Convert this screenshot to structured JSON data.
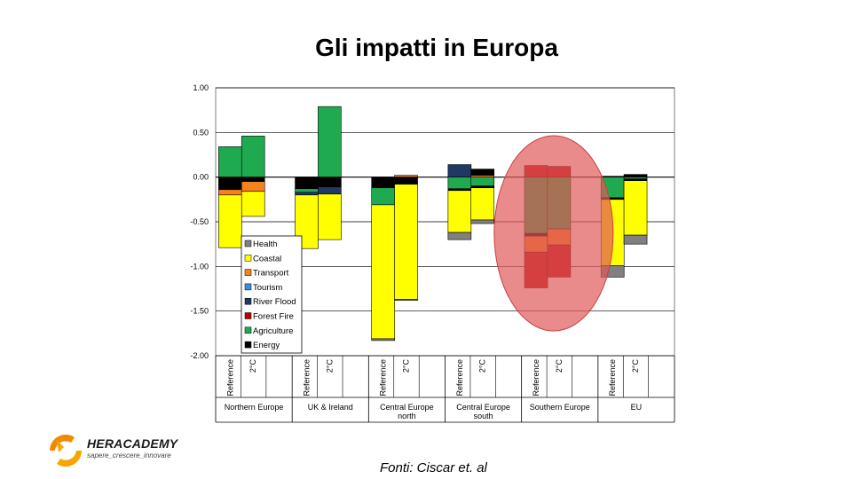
{
  "slide": {
    "title": "Gli impatti in Europa",
    "source": "Fonti: Ciscar et. al"
  },
  "logo": {
    "name": "HERACADEMY",
    "tagline": "sapere_crescere_innovare"
  },
  "colors": {
    "Health": "#808080",
    "Coastal": "#ffff00",
    "Transport": "#f58220",
    "Tourism": "#3b8fd8",
    "River Flood": "#1f3864",
    "Forest Fire": "#c00000",
    "Agriculture": "#1faa4f",
    "Energy": "#000000",
    "highlight": "#e05a5a"
  },
  "chart_data": {
    "type": "bar",
    "stacked": true,
    "ylim": [
      -2.0,
      1.0
    ],
    "yticks": [
      "1.00",
      "0.50",
      "0.00",
      "-0.50",
      "-1.00",
      "-1.50",
      "-2.00"
    ],
    "grid": true,
    "legend_position": "bottom-left",
    "legend": [
      "Health",
      "Coastal",
      "Transport",
      "Tourism",
      "River Flood",
      "Forest Fire",
      "Agriculture",
      "Energy"
    ],
    "groups": [
      {
        "label": "Northern Europe",
        "bars": [
          {
            "label": "Reference",
            "segments": [
              {
                "name": "Agriculture",
                "value": 0.34
              },
              {
                "name": "Energy",
                "value": -0.14
              },
              {
                "name": "Transport",
                "value": -0.06
              },
              {
                "name": "Coastal",
                "value": -0.59
              }
            ]
          },
          {
            "label": "2°C",
            "segments": [
              {
                "name": "Agriculture",
                "value": 0.46
              },
              {
                "name": "Energy",
                "value": -0.05
              },
              {
                "name": "Transport",
                "value": -0.11
              },
              {
                "name": "Coastal",
                "value": -0.28
              }
            ]
          }
        ]
      },
      {
        "label": "UK & Ireland",
        "bars": [
          {
            "label": "Reference",
            "segments": [
              {
                "name": "Energy",
                "value": -0.13
              },
              {
                "name": "Agriculture",
                "value": -0.04
              },
              {
                "name": "River Flood",
                "value": -0.03
              },
              {
                "name": "Coastal",
                "value": -0.6
              }
            ]
          },
          {
            "label": "2°C",
            "segments": [
              {
                "name": "Agriculture",
                "value": 0.79
              },
              {
                "name": "Energy",
                "value": -0.11
              },
              {
                "name": "River Flood",
                "value": -0.08
              },
              {
                "name": "Coastal",
                "value": -0.51
              }
            ]
          }
        ]
      },
      {
        "label": "Central Europe north",
        "bars": [
          {
            "label": "Reference",
            "segments": [
              {
                "name": "Energy",
                "value": -0.12
              },
              {
                "name": "Agriculture",
                "value": -0.19
              },
              {
                "name": "Coastal",
                "value": -1.5
              },
              {
                "name": "Health",
                "value": -0.02
              }
            ]
          },
          {
            "label": "2°C",
            "segments": [
              {
                "name": "Transport",
                "value": 0.02
              },
              {
                "name": "Energy",
                "value": -0.08
              },
              {
                "name": "Coastal",
                "value": -1.29
              },
              {
                "name": "Health",
                "value": -0.01
              }
            ]
          }
        ]
      },
      {
        "label": "Central Europe south",
        "bars": [
          {
            "label": "Reference",
            "segments": [
              {
                "name": "River Flood",
                "value": 0.14
              },
              {
                "name": "Agriculture",
                "value": -0.13
              },
              {
                "name": "Energy",
                "value": -0.02
              },
              {
                "name": "Coastal",
                "value": -0.47
              },
              {
                "name": "Health",
                "value": -0.08
              }
            ]
          },
          {
            "label": "2°C",
            "segments": [
              {
                "name": "Transport",
                "value": 0.02
              },
              {
                "name": "Energy",
                "value": 0.07
              },
              {
                "name": "Agriculture",
                "value": -0.1
              },
              {
                "name": "Energy",
                "value": -0.02
              },
              {
                "name": "Coastal",
                "value": -0.36
              },
              {
                "name": "Health",
                "value": -0.04
              }
            ]
          }
        ]
      },
      {
        "label": "Southern Europe",
        "bars": [
          {
            "label": "Reference",
            "segments": [
              {
                "name": "Forest Fire",
                "value": 0.13
              },
              {
                "name": "Agriculture",
                "value": -0.63
              },
              {
                "name": "Energy",
                "value": -0.03
              },
              {
                "name": "Transport",
                "value": -0.18
              },
              {
                "name": "Forest Fire",
                "value": -0.4
              }
            ]
          },
          {
            "label": "2°C",
            "segments": [
              {
                "name": "Forest Fire",
                "value": 0.12
              },
              {
                "name": "Agriculture",
                "value": -0.58
              },
              {
                "name": "Transport",
                "value": -0.18
              },
              {
                "name": "Forest Fire",
                "value": -0.36
              }
            ]
          }
        ]
      },
      {
        "label": "EU",
        "bars": [
          {
            "label": "Reference",
            "segments": [
              {
                "name": "Energy",
                "value": 0.01
              },
              {
                "name": "Agriculture",
                "value": -0.23
              },
              {
                "name": "Energy",
                "value": -0.02
              },
              {
                "name": "Coastal",
                "value": -0.74
              },
              {
                "name": "Health",
                "value": -0.13
              }
            ]
          },
          {
            "label": "2°C",
            "segments": [
              {
                "name": "Energy",
                "value": 0.03
              },
              {
                "name": "Agriculture",
                "value": -0.02
              },
              {
                "name": "Energy",
                "value": -0.02
              },
              {
                "name": "Coastal",
                "value": -0.61
              },
              {
                "name": "Health",
                "value": -0.1
              }
            ]
          }
        ]
      }
    ],
    "annotation": {
      "type": "ellipse",
      "highlights": "Southern Europe"
    }
  }
}
